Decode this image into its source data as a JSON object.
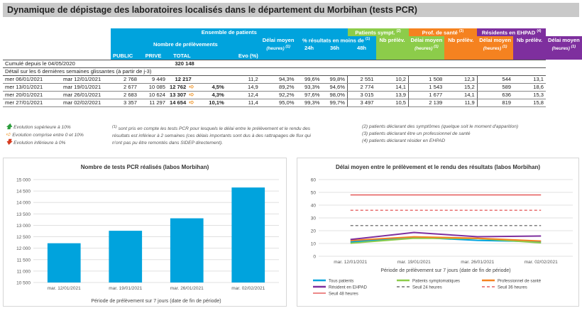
{
  "title": "Dynamique de dépistage des laboratoires localisés dans le département du Morbihan (tests PCR)",
  "table": {
    "group_all": "Ensemble de patients",
    "group_sympt": "Patients sympt.",
    "sup_sympt": "(2)",
    "group_pro": "Prof. de santé",
    "sup_pro": "(3)",
    "group_ehpad": "Résidents en EHPAD",
    "sup_ehpad": "(4)",
    "nb_prelev": "Nombre de prélèvements",
    "delai_moyen": "Délai moyen",
    "heures": "(heures)",
    "sup1": "(1)",
    "pct_results": "% résultats en moins de",
    "h24": "24h",
    "h36": "36h",
    "h48": "48h",
    "nb_prelev_short": "Nb prélèv.",
    "col_public": "PUBLIC",
    "col_prive": "PRIVE",
    "col_total": "TOTAL",
    "col_evo": "Evo (%)",
    "cumul_label": "Cumulé depuis le 04/05/2020",
    "cumul_total": "320 148",
    "detail_label": "Détail sur les 6 dernières semaines glissantes (à partir de j-3)",
    "rows": [
      {
        "d1": "mer 06/01/2021",
        "d2": "mar 12/01/2021",
        "pub": "2 768",
        "priv": "9 449",
        "tot": "12 217",
        "arrow": "",
        "evo": "",
        "del": "11,2",
        "p24": "94,3%",
        "p36": "99,6%",
        "p48": "99,8%",
        "sn": "2 551",
        "sd": "10,2",
        "pn": "1 508",
        "pd": "12,3",
        "en": "544",
        "ed": "13,1"
      },
      {
        "d1": "mer 13/01/2021",
        "d2": "mar 19/01/2021",
        "pub": "2 677",
        "priv": "10 085",
        "tot": "12 762",
        "arrow": "➪",
        "evo": "4,5%",
        "del": "14,9",
        "p24": "89,2%",
        "p36": "93,3%",
        "p48": "94,6%",
        "sn": "2 774",
        "sd": "14,1",
        "pn": "1 543",
        "pd": "15,2",
        "en": "589",
        "ed": "18,6"
      },
      {
        "d1": "mer 20/01/2021",
        "d2": "mar 26/01/2021",
        "pub": "2 683",
        "priv": "10 624",
        "tot": "13 307",
        "arrow": "➪",
        "evo": "4,3%",
        "del": "12,4",
        "p24": "92,2%",
        "p36": "97,6%",
        "p48": "98,0%",
        "sn": "3 015",
        "sd": "13,9",
        "pn": "1 677",
        "pd": "14,1",
        "en": "636",
        "ed": "15,3"
      },
      {
        "d1": "mer 27/01/2021",
        "d2": "mar 02/02/2021",
        "pub": "3 357",
        "priv": "11 297",
        "tot": "14 654",
        "arrow": "➪",
        "evo": "10,1%",
        "del": "11,4",
        "p24": "95,0%",
        "p36": "99,3%",
        "p48": "99,7%",
        "sn": "3 497",
        "sd": "10,5",
        "pn": "2 139",
        "pd": "11,9",
        "en": "819",
        "ed": "15,8"
      }
    ]
  },
  "legend": {
    "up": "Evolution supérieure à 10%",
    "mid": "Evolution comprise entre 0 et 10%",
    "down": "Evolution inférieure à 0%"
  },
  "notes": {
    "n1": "(1) sont pris en compte les tests PCR pour lesquels le délai entre le prélèvement et le rendu des résultats est inférieur à 2 semaines (ces délais importants sont dus à des rattrapages de flux qui n'ont pas pu être remontés dans SIDEP directement).",
    "n1a": "(1)",
    "n1b": "sont pris en compte les tests PCR pour lesquels le délai entre le prélèvement et le rendu des",
    "n1c": "résultats est inférieur à 2 semaines (ces délais importants sont dus à des rattrapages de flux qui",
    "n1d": "n'ont pas pu être remontés dans SIDEP directement).",
    "n2": "(2) patients déclarant des symptômes (quelque soit le moment d'apparition)",
    "n3": "(3) patients déclarant être un professionnel de santé",
    "n4": "(4) patients déclarant résider en EHPAD"
  },
  "chart_data": [
    {
      "type": "bar",
      "title": "Nombre de tests PCR réalisés (labos Morbihan)",
      "categories": [
        "mar. 12/01/2021",
        "mar. 19/01/2021",
        "mar. 26/01/2021",
        "mar. 02/02/2021"
      ],
      "values": [
        12217,
        12762,
        13307,
        14654
      ],
      "xlabel": "Période de prélèvement sur 7 jours (date de fin de période)",
      "ylim": [
        10500,
        15000
      ],
      "yticks": [
        "10 500",
        "11 000",
        "11 500",
        "12 000",
        "12 500",
        "13 000",
        "13 500",
        "14 000",
        "14 500",
        "15 000"
      ],
      "color": "#00a3dd"
    },
    {
      "type": "line",
      "title": "Délai moyen entre le prélèvement et le rendu des résultats (labos Morbihan)",
      "categories": [
        "mar. 12/01/2021",
        "mar. 19/01/2021",
        "mar. 26/01/2021",
        "mar. 02/02/2021"
      ],
      "ylim": [
        0,
        60
      ],
      "yticks": [
        "0",
        "10",
        "20",
        "30",
        "40",
        "50",
        "60"
      ],
      "xlabel": "Période de prélèvement sur 7 jours (date de fin de période)",
      "series": [
        {
          "name": "Tous patients",
          "values": [
            11.2,
            14.9,
            12.4,
            11.4
          ],
          "color": "#00a3dd"
        },
        {
          "name": "Patients symptomatiques",
          "values": [
            10.2,
            14.1,
            13.9,
            10.5
          ],
          "color": "#8ccc4a"
        },
        {
          "name": "Professionnel de santé",
          "values": [
            12.3,
            15.2,
            14.1,
            11.9
          ],
          "color": "#f58220"
        },
        {
          "name": "Résident en EHPAD",
          "values": [
            13.1,
            18.6,
            15.3,
            15.8
          ],
          "color": "#7e2f9e"
        },
        {
          "name": "Seuil 24 heures",
          "values": [
            24,
            24,
            24,
            24
          ],
          "color": "#555555",
          "dash": "dash"
        },
        {
          "name": "Seuil 36 heures",
          "values": [
            36,
            36,
            36,
            36
          ],
          "color": "#e04040",
          "dash": "dash"
        },
        {
          "name": "Seuil 48 heures",
          "values": [
            48,
            48,
            48,
            48
          ],
          "color": "#e04040",
          "dash": "solid"
        }
      ]
    }
  ]
}
